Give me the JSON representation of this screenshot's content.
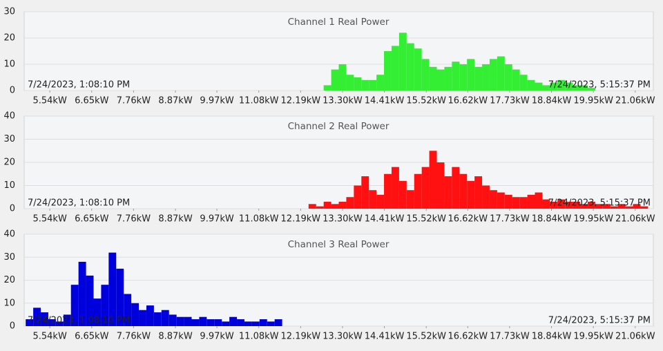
{
  "chart_data": [
    {
      "type": "histogram",
      "title": "Channel 1 Real Power",
      "color": "#33ee33",
      "annotations": [
        "7/24/2023, 1:08:10 PM",
        "7/24/2023, 5:15:37 PM"
      ],
      "bins": [
        12.8,
        13.0,
        13.2,
        13.4,
        13.6,
        13.8,
        14.0,
        14.2,
        14.4,
        14.6,
        14.8,
        15.0,
        15.2,
        15.4,
        15.6,
        15.8,
        16.0,
        16.2,
        16.4,
        16.6,
        16.8,
        17.0,
        17.2,
        17.4,
        17.6,
        17.8,
        18.0,
        18.2,
        18.4,
        18.6,
        18.8,
        19.0,
        19.2,
        19.4,
        19.6,
        19.8,
        20.0
      ],
      "values": [
        2,
        8,
        10,
        6,
        5,
        4,
        4,
        6,
        15,
        17,
        22,
        18,
        16,
        12,
        9,
        8,
        9,
        11,
        10,
        12,
        9,
        10,
        12,
        13,
        10,
        8,
        6,
        4,
        3,
        2,
        3,
        4,
        3,
        2,
        2,
        1
      ],
      "xlim": [
        4.86,
        21.54
      ],
      "ylim": [
        0,
        30
      ],
      "yticks": [
        0,
        10,
        20,
        30
      ],
      "grid": true,
      "xticks": [
        {
          "value": 5.54,
          "label": "5.54kW"
        },
        {
          "value": 6.65,
          "label": "6.65kW"
        },
        {
          "value": 7.76,
          "label": "7.76kW"
        },
        {
          "value": 8.87,
          "label": "8.87kW"
        },
        {
          "value": 9.97,
          "label": "9.97kW"
        },
        {
          "value": 11.08,
          "label": "11.08kW"
        },
        {
          "value": 12.19,
          "label": "12.19kW"
        },
        {
          "value": 13.3,
          "label": "13.30kW"
        },
        {
          "value": 14.41,
          "label": "14.41kW"
        },
        {
          "value": 15.52,
          "label": "15.52kW"
        },
        {
          "value": 16.62,
          "label": "16.62kW"
        },
        {
          "value": 17.73,
          "label": "17.73kW"
        },
        {
          "value": 18.84,
          "label": "18.84kW"
        },
        {
          "value": 19.95,
          "label": "19.95kW"
        },
        {
          "value": 21.06,
          "label": "21.06kW"
        }
      ]
    },
    {
      "type": "histogram",
      "title": "Channel 2 Real Power",
      "color": "#ff1111",
      "annotations": [
        "7/24/2023, 1:08:10 PM",
        "7/24/2023, 5:15:37 PM"
      ],
      "bins": [
        12.4,
        12.6,
        12.8,
        13.0,
        13.2,
        13.4,
        13.6,
        13.8,
        14.0,
        14.2,
        14.4,
        14.6,
        14.8,
        15.0,
        15.2,
        15.4,
        15.6,
        15.8,
        16.0,
        16.2,
        16.4,
        16.6,
        16.8,
        17.0,
        17.2,
        17.4,
        17.6,
        17.8,
        18.0,
        18.2,
        18.4,
        18.6,
        18.8,
        19.0,
        19.2,
        19.4,
        19.6,
        19.8,
        20.0,
        20.2,
        20.4,
        20.6,
        20.8,
        21.0,
        21.2,
        21.4
      ],
      "values": [
        2,
        1,
        3,
        2,
        3,
        5,
        10,
        14,
        8,
        6,
        15,
        18,
        12,
        8,
        15,
        18,
        25,
        20,
        14,
        18,
        15,
        12,
        14,
        10,
        8,
        7,
        6,
        5,
        5,
        6,
        7,
        4,
        3,
        4,
        3,
        3,
        2,
        3,
        2,
        2,
        1,
        2,
        1,
        2,
        1
      ],
      "xlim": [
        4.86,
        21.54
      ],
      "ylim": [
        0,
        40
      ],
      "yticks": [
        0,
        10,
        20,
        30,
        40
      ],
      "grid": true,
      "xticks": [
        {
          "value": 5.54,
          "label": "5.54kW"
        },
        {
          "value": 6.65,
          "label": "6.65kW"
        },
        {
          "value": 7.76,
          "label": "7.76kW"
        },
        {
          "value": 8.87,
          "label": "8.87kW"
        },
        {
          "value": 9.97,
          "label": "9.97kW"
        },
        {
          "value": 11.08,
          "label": "11.08kW"
        },
        {
          "value": 12.19,
          "label": "12.19kW"
        },
        {
          "value": 13.3,
          "label": "13.30kW"
        },
        {
          "value": 14.41,
          "label": "14.41kW"
        },
        {
          "value": 15.52,
          "label": "15.52kW"
        },
        {
          "value": 16.62,
          "label": "16.62kW"
        },
        {
          "value": 17.73,
          "label": "17.73kW"
        },
        {
          "value": 18.84,
          "label": "18.84kW"
        },
        {
          "value": 19.95,
          "label": "19.95kW"
        },
        {
          "value": 21.06,
          "label": "21.06kW"
        }
      ]
    },
    {
      "type": "histogram",
      "title": "Channel 3 Real Power",
      "color": "#0000dd",
      "annotations": [
        "7/24/2023, 1:08:10 PM",
        "7/24/2023, 5:15:37 PM"
      ],
      "bins": [
        4.9,
        5.1,
        5.3,
        5.5,
        5.7,
        5.9,
        6.1,
        6.3,
        6.5,
        6.7,
        6.9,
        7.1,
        7.3,
        7.5,
        7.7,
        7.9,
        8.1,
        8.3,
        8.5,
        8.7,
        8.9,
        9.1,
        9.3,
        9.5,
        9.7,
        9.9,
        10.1,
        10.3,
        10.5,
        10.7,
        10.9,
        11.1,
        11.3,
        11.5,
        11.7
      ],
      "values": [
        3,
        8,
        6,
        3,
        2,
        5,
        18,
        28,
        22,
        12,
        18,
        32,
        25,
        14,
        10,
        7,
        9,
        6,
        7,
        5,
        4,
        4,
        3,
        4,
        3,
        3,
        2,
        4,
        3,
        2,
        2,
        3,
        2,
        3
      ],
      "xlim": [
        4.86,
        21.54
      ],
      "ylim": [
        0,
        40
      ],
      "yticks": [
        0,
        10,
        20,
        30,
        40
      ],
      "grid": true,
      "xticks": [
        {
          "value": 5.54,
          "label": "5.54kW"
        },
        {
          "value": 6.65,
          "label": "6.65kW"
        },
        {
          "value": 7.76,
          "label": "7.76kW"
        },
        {
          "value": 8.87,
          "label": "8.87kW"
        },
        {
          "value": 9.97,
          "label": "9.97kW"
        },
        {
          "value": 11.08,
          "label": "11.08kW"
        },
        {
          "value": 12.19,
          "label": "12.19kW"
        },
        {
          "value": 13.3,
          "label": "13.30kW"
        },
        {
          "value": 14.41,
          "label": "14.41kW"
        },
        {
          "value": 15.52,
          "label": "15.52kW"
        },
        {
          "value": 16.62,
          "label": "16.62kW"
        },
        {
          "value": 17.73,
          "label": "17.73kW"
        },
        {
          "value": 18.84,
          "label": "18.84kW"
        },
        {
          "value": 19.95,
          "label": "19.95kW"
        },
        {
          "value": 21.06,
          "label": "21.06kW"
        }
      ]
    }
  ]
}
